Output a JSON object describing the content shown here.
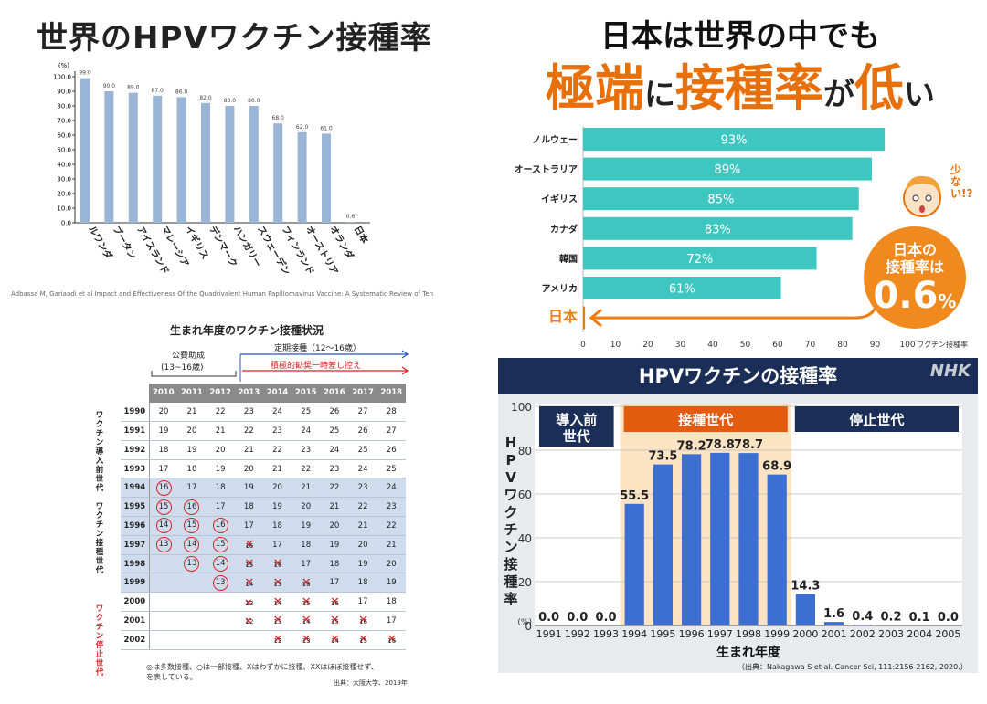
{
  "panel1": {
    "title": "世界のHPVワクチン接種率",
    "citation": "Adbassa M, Gariaadi et al Impact and Effectiveness Of the Quadrivalent Human Papillomavirus Vaccine: A Systematic Review of Ten"
  },
  "panel2": {
    "headline1": "日本は世界の中でも",
    "headline2_a": "極端",
    "headline2_b": "に",
    "headline2_c": "接種率",
    "headline2_d": "が",
    "headline2_e": "低",
    "headline2_f": "い",
    "japan_label": "日本",
    "badge_line1": "日本の",
    "badge_line2": "接種率は",
    "badge_value": "0.6",
    "badge_unit": "%",
    "exclaim": "少ない!?",
    "axis_unit": "ワクチン接種率"
  },
  "panel3": {
    "title": "生まれ年度のワクチン接種状況",
    "subsidy_label": "公費助成",
    "subsidy_range": "(13~16歳)",
    "routine_label": "定期接種（12～16歳）",
    "suspend_label": "積極的勧奨一時差し控え",
    "group1": "ワクチン導入前世代",
    "group2": "ワクチン接種世代",
    "group3": "ワクチン停止世代",
    "note1": "◎は多数接種、○は一部接種、Xはわずかに接種、XXはほぼ接種せず、",
    "note2": "を表している。",
    "source": "出典：大阪大学、2019年",
    "cols": [
      "2010",
      "2011",
      "2012",
      "2013",
      "2014",
      "2015",
      "2016",
      "2017",
      "2018"
    ],
    "rows": [
      {
        "year": "1990",
        "cells": [
          "20",
          "21",
          "22",
          "23",
          "24",
          "25",
          "26",
          "27",
          "28"
        ]
      },
      {
        "year": "1991",
        "cells": [
          "19",
          "20",
          "21",
          "22",
          "23",
          "24",
          "25",
          "26",
          "27"
        ]
      },
      {
        "year": "1992",
        "cells": [
          "18",
          "19",
          "20",
          "21",
          "22",
          "23",
          "24",
          "25",
          "26"
        ]
      },
      {
        "year": "1993",
        "cells": [
          "17",
          "18",
          "19",
          "20",
          "21",
          "22",
          "23",
          "24",
          "25"
        ]
      },
      {
        "year": "1994",
        "cells": [
          "◎16",
          "17",
          "18",
          "19",
          "20",
          "21",
          "22",
          "23",
          "24"
        ]
      },
      {
        "year": "1995",
        "cells": [
          "◎15",
          "○16",
          "17",
          "18",
          "19",
          "20",
          "21",
          "22",
          "23"
        ]
      },
      {
        "year": "1996",
        "cells": [
          "◎14",
          "○15",
          "○16",
          "17",
          "18",
          "19",
          "20",
          "21",
          "22"
        ]
      },
      {
        "year": "1997",
        "cells": [
          "◎13",
          "○14",
          "○15",
          "XX16",
          "17",
          "18",
          "19",
          "20",
          "21"
        ]
      },
      {
        "year": "1998",
        "cells": [
          "",
          "◎13",
          "○14",
          "XX15",
          "XX16",
          "17",
          "18",
          "19",
          "20"
        ]
      },
      {
        "year": "1999",
        "cells": [
          "",
          "",
          "◎13",
          "XX14",
          "XX15",
          "XX16",
          "17",
          "18",
          "19"
        ]
      },
      {
        "year": "2000",
        "cells": [
          "",
          "",
          "",
          "X13",
          "XX14",
          "XX15",
          "XX16",
          "17",
          "18"
        ]
      },
      {
        "year": "2001",
        "cells": [
          "",
          "",
          "",
          "X12",
          "XX13",
          "XX14",
          "XX15",
          "XX16",
          "17"
        ]
      },
      {
        "year": "2002",
        "cells": [
          "",
          "",
          "",
          "",
          "XX12",
          "XX13",
          "XX14",
          "XX15",
          "XX16"
        ]
      }
    ]
  },
  "panel4": {
    "banner": "HPVワクチンの接種率",
    "logo": "NHK",
    "gen1": "導入前\n世代",
    "gen2": "接種世代",
    "gen3": "停止世代",
    "xlabel": "生まれ年度",
    "ylabel": "HPVワクチン接種率",
    "unit": "(%)",
    "source": "（出典：Nakagawa S et al. Cancer Sci, 111:2156-2162, 2020.）"
  },
  "colors": {
    "bar1": "#9bb5d6",
    "teal": "#3ec7c0",
    "orange": "#ef7d12",
    "navy": "#1a2e57",
    "nhkbar": "#3c6fd1",
    "band": "#fbe3c4"
  },
  "chart_data": [
    {
      "type": "bar",
      "title": "世界のHPVワクチン接種率",
      "ylabel": "(%)",
      "ylim": [
        0,
        100
      ],
      "categories": [
        "ルワンダ",
        "ブータン",
        "アイスランド",
        "マレーシア",
        "イギリス",
        "デンマーク",
        "ハンガリー",
        "スウェーデン",
        "フィンランド",
        "オーストリア",
        "オランダ",
        "日本"
      ],
      "values": [
        99.0,
        90.0,
        89.0,
        87.0,
        86.0,
        82.0,
        80.0,
        80.0,
        68.0,
        62.0,
        61.0,
        0.6
      ],
      "labels": [
        "99.0",
        "90.0",
        "89.0",
        "87.0",
        "86.0",
        "82.0",
        "80.0",
        "80.0",
        "68.0",
        "62.0",
        "61.0",
        "0.6"
      ],
      "yticks": [
        "0.0",
        "10.0",
        "20.0",
        "30.0",
        "40.0",
        "50.0",
        "60.0",
        "70.0",
        "80.0",
        "90.0",
        "100.0"
      ]
    },
    {
      "type": "bar",
      "orientation": "horizontal",
      "xlim": [
        0,
        100
      ],
      "categories": [
        "ノルウェー",
        "オーストラリア",
        "イギリス",
        "カナダ",
        "韓国",
        "アメリカ",
        "日本"
      ],
      "values": [
        93,
        89,
        85,
        83,
        72,
        61,
        0.6
      ],
      "labels": [
        "93%",
        "89%",
        "85%",
        "83%",
        "72%",
        "61%",
        ""
      ],
      "xticks": [
        "0",
        "10",
        "20",
        "30",
        "40",
        "50",
        "60",
        "70",
        "80",
        "90",
        "100"
      ]
    },
    {
      "type": "bar",
      "ylim": [
        0,
        100
      ],
      "categories": [
        "1991",
        "1992",
        "1993",
        "1994",
        "1995",
        "1996",
        "1997",
        "1998",
        "1999",
        "2000",
        "2001",
        "2002",
        "2003",
        "2004",
        "2005"
      ],
      "values": [
        0.0,
        0.0,
        0.0,
        55.5,
        73.5,
        78.2,
        78.8,
        78.7,
        68.9,
        14.3,
        1.6,
        0.4,
        0.2,
        0.1,
        0.0
      ],
      "labels": [
        "0.0",
        "0.0",
        "0.0",
        "55.5",
        "73.5",
        "78.2",
        "78.8",
        "78.7",
        "68.9",
        "14.3",
        "1.6",
        "0.4",
        "0.2",
        "0.1",
        "0.0"
      ],
      "yticks": [
        "0",
        "20",
        "40",
        "60",
        "80",
        "100"
      ]
    }
  ]
}
